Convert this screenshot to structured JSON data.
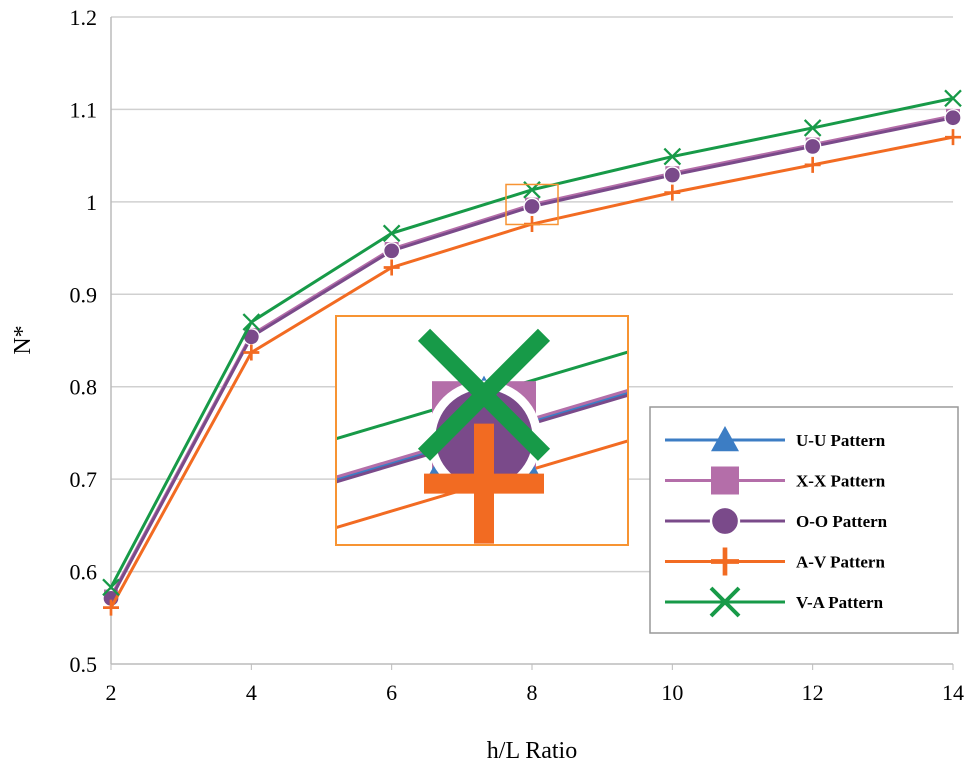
{
  "chart_data": {
    "type": "line",
    "title": "",
    "xlabel": "h/L Ratio",
    "ylabel": "N*",
    "xlim": [
      2,
      14
    ],
    "ylim": [
      0.5,
      1.2
    ],
    "x": [
      2,
      4,
      6,
      8,
      10,
      12,
      14
    ],
    "xticks": [
      "2",
      "4",
      "6",
      "8",
      "10",
      "12",
      "14"
    ],
    "yticks": [
      "0.5",
      "0.6",
      "0.7",
      "0.8",
      "0.9",
      "1",
      "1.1",
      "1.2"
    ],
    "grid": "horizontal",
    "legend_position": "right",
    "inset": "zoomed view at h/L = 8",
    "series": [
      {
        "name": "U-U Pattern",
        "color": "#3c7dc4",
        "marker": "triangle",
        "values": [
          0.572,
          0.855,
          0.948,
          0.996,
          1.03,
          1.061,
          1.092
        ]
      },
      {
        "name": "X-X Pattern",
        "color": "#b46ea9",
        "marker": "square",
        "values": [
          0.573,
          0.856,
          0.949,
          0.997,
          1.031,
          1.062,
          1.093
        ]
      },
      {
        "name": "O-O Pattern",
        "color": "#7a4a8a",
        "marker": "circle",
        "values": [
          0.571,
          0.854,
          0.947,
          0.995,
          1.029,
          1.06,
          1.091
        ]
      },
      {
        "name": "A-V Pattern",
        "color": "#f26b22",
        "marker": "plus",
        "values": [
          0.561,
          0.837,
          0.929,
          0.976,
          1.01,
          1.04,
          1.07
        ]
      },
      {
        "name": "V-A Pattern",
        "color": "#179a48",
        "marker": "x",
        "values": [
          0.583,
          0.87,
          0.966,
          1.013,
          1.049,
          1.08,
          1.112
        ]
      }
    ]
  }
}
